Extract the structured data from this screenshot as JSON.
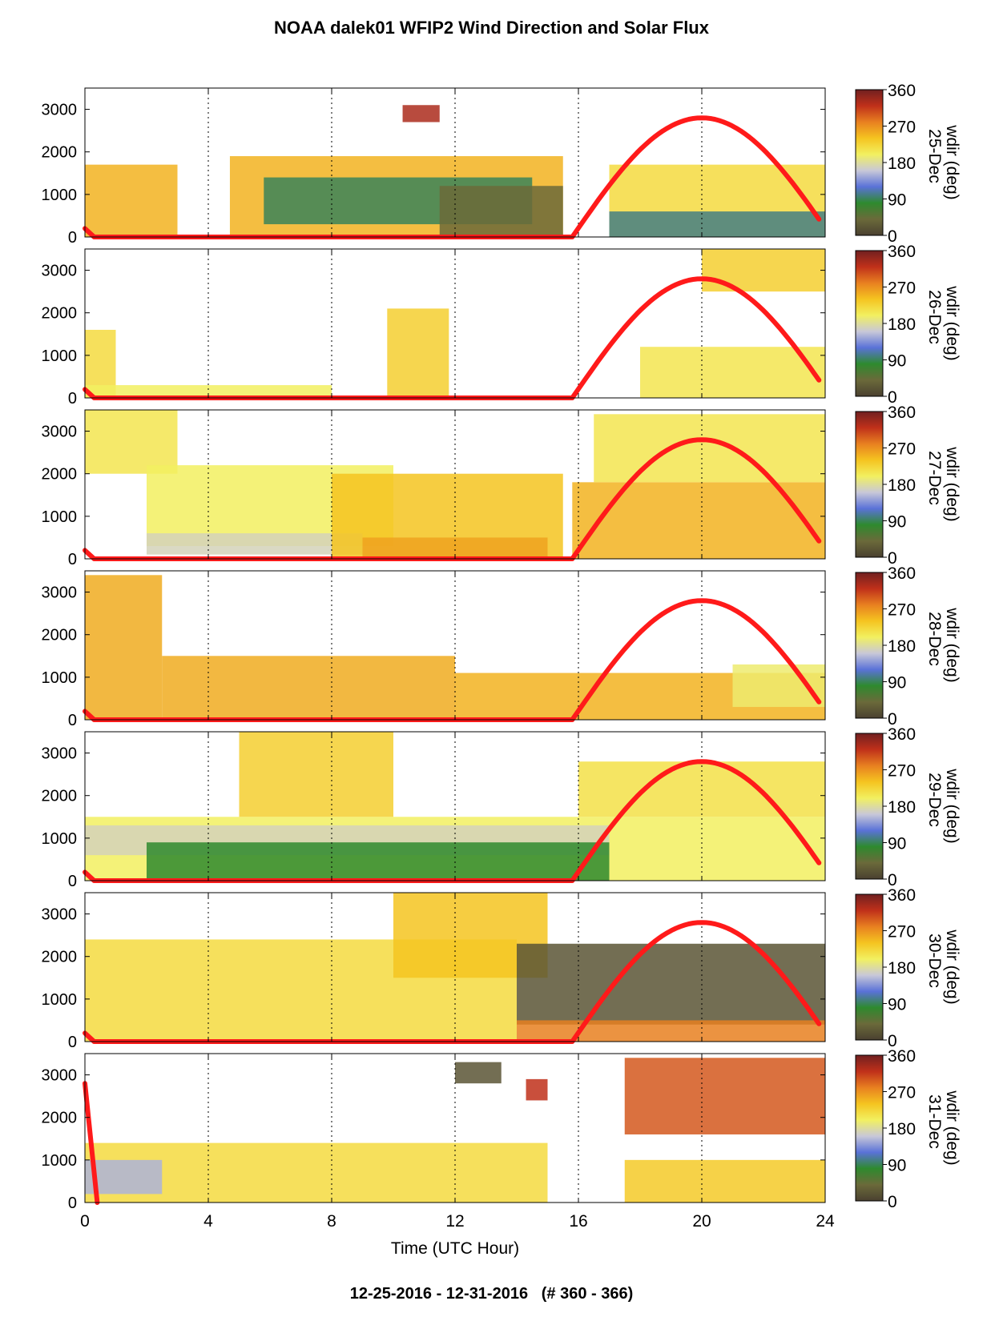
{
  "title": "NOAA dalek01 WFIP2 Wind Direction and Solar Flux",
  "footer": "12-25-2016 - 12-31-2016   (# 360 - 366)",
  "chart_data": {
    "type": "heatmap",
    "xlabel": "Time (UTC Hour)",
    "xlim": [
      0,
      24
    ],
    "xticks": [
      0,
      4,
      8,
      12,
      16,
      20,
      24
    ],
    "ylim": [
      0,
      3500
    ],
    "yticks": [
      0,
      1000,
      2000,
      3000
    ],
    "colorbar": {
      "label": "wdir (deg)",
      "ticks": [
        0,
        90,
        180,
        270,
        360
      ],
      "range": [
        0,
        360
      ],
      "colors": [
        "#4a4030",
        "#6b6a3a",
        "#2e8a2e",
        "#5a72d8",
        "#c8c8d8",
        "#f2f060",
        "#f5c420",
        "#e88020",
        "#c0301a",
        "#702020"
      ]
    },
    "solar_flux_color": "#ff1a1a",
    "panels": [
      {
        "day": "25-Dec",
        "solar_peak_hour": 20.0,
        "solar_start_hour": 15.8,
        "regions": [
          {
            "x": [
              0.0,
              3.0
            ],
            "y": [
              0,
              1700
            ],
            "dir": 250
          },
          {
            "x": [
              4.7,
              15.5
            ],
            "y": [
              0,
              1900
            ],
            "dir": 250
          },
          {
            "x": [
              5.8,
              14.5
            ],
            "y": [
              300,
              1400
            ],
            "dir": 90
          },
          {
            "x": [
              11.5,
              15.5
            ],
            "y": [
              0,
              1200
            ],
            "dir": 40
          },
          {
            "x": [
              17.0,
              24.0
            ],
            "y": [
              0,
              1700
            ],
            "dir": 220
          },
          {
            "x": [
              17.0,
              24.0
            ],
            "y": [
              0,
              600
            ],
            "dir": 100
          },
          {
            "x": [
              10.3,
              11.5
            ],
            "y": [
              2700,
              3100
            ],
            "dir": 330
          }
        ]
      },
      {
        "day": "26-Dec",
        "solar_peak_hour": 20.0,
        "solar_start_hour": 15.8,
        "regions": [
          {
            "x": [
              0.0,
              1.0
            ],
            "y": [
              0,
              1600
            ],
            "dir": 220
          },
          {
            "x": [
              0.0,
              8.0
            ],
            "y": [
              0,
              300
            ],
            "dir": 200
          },
          {
            "x": [
              9.8,
              11.8
            ],
            "y": [
              0,
              2100
            ],
            "dir": 230
          },
          {
            "x": [
              20.0,
              24.0
            ],
            "y": [
              2500,
              3500
            ],
            "dir": 230
          },
          {
            "x": [
              18.0,
              24.0
            ],
            "y": [
              0,
              1200
            ],
            "dir": 210
          }
        ]
      },
      {
        "day": "27-Dec",
        "solar_peak_hour": 20.0,
        "solar_start_hour": 15.8,
        "regions": [
          {
            "x": [
              0.0,
              3.0
            ],
            "y": [
              2000,
              3500
            ],
            "dir": 210
          },
          {
            "x": [
              2.0,
              10.0
            ],
            "y": [
              300,
              2200
            ],
            "dir": 200
          },
          {
            "x": [
              2.0,
              9.0
            ],
            "y": [
              100,
              600
            ],
            "dir": 170
          },
          {
            "x": [
              8.0,
              15.5
            ],
            "y": [
              0,
              2000
            ],
            "dir": 240
          },
          {
            "x": [
              9.0,
              15.0
            ],
            "y": [
              0,
              500
            ],
            "dir": 260
          },
          {
            "x": [
              15.8,
              24.0
            ],
            "y": [
              0,
              1800
            ],
            "dir": 250
          },
          {
            "x": [
              16.5,
              24.0
            ],
            "y": [
              1800,
              3400
            ],
            "dir": 210
          }
        ]
      },
      {
        "day": "28-Dec",
        "solar_peak_hour": 20.0,
        "solar_start_hour": 15.8,
        "regions": [
          {
            "x": [
              0.0,
              2.5
            ],
            "y": [
              0,
              3400
            ],
            "dir": 255
          },
          {
            "x": [
              2.5,
              12.0
            ],
            "y": [
              0,
              1500
            ],
            "dir": 255
          },
          {
            "x": [
              12.0,
              24.0
            ],
            "y": [
              0,
              1100
            ],
            "dir": 250
          },
          {
            "x": [
              21.0,
              24.0
            ],
            "y": [
              300,
              1300
            ],
            "dir": 195
          }
        ]
      },
      {
        "day": "29-Dec",
        "solar_peak_hour": 20.0,
        "solar_start_hour": 15.8,
        "regions": [
          {
            "x": [
              0.0,
              24.0
            ],
            "y": [
              0,
              1500
            ],
            "dir": 200
          },
          {
            "x": [
              5.0,
              10.0
            ],
            "y": [
              1500,
              3500
            ],
            "dir": 230
          },
          {
            "x": [
              0.0,
              17.0
            ],
            "y": [
              600,
              1300
            ],
            "dir": 170
          },
          {
            "x": [
              2.0,
              17.0
            ],
            "y": [
              0,
              900
            ],
            "dir": 80
          },
          {
            "x": [
              16.0,
              24.0
            ],
            "y": [
              1500,
              2800
            ],
            "dir": 215
          }
        ]
      },
      {
        "day": "30-Dec",
        "solar_peak_hour": 20.0,
        "solar_start_hour": 15.8,
        "regions": [
          {
            "x": [
              0.0,
              14.0
            ],
            "y": [
              0,
              2400
            ],
            "dir": 220
          },
          {
            "x": [
              10.0,
              15.0
            ],
            "y": [
              1500,
              3500
            ],
            "dir": 240
          },
          {
            "x": [
              14.0,
              24.0
            ],
            "y": [
              400,
              2300
            ],
            "dir": 20
          },
          {
            "x": [
              14.0,
              24.0
            ],
            "y": [
              0,
              500
            ],
            "dir": 280
          }
        ]
      },
      {
        "day": "31-Dec",
        "solar_peak_hour": 0.0,
        "solar_start_hour": 0.0,
        "solar_end_hour": 0.4,
        "regions": [
          {
            "x": [
              0.0,
              15.0
            ],
            "y": [
              0,
              1400
            ],
            "dir": 220
          },
          {
            "x": [
              0.0,
              2.5
            ],
            "y": [
              200,
              1000
            ],
            "dir": 150
          },
          {
            "x": [
              17.5,
              24.0
            ],
            "y": [
              0,
              1000
            ],
            "dir": 235
          },
          {
            "x": [
              17.5,
              24.0
            ],
            "y": [
              1600,
              3400
            ],
            "dir": 300
          },
          {
            "x": [
              12.0,
              13.5
            ],
            "y": [
              2800,
              3300
            ],
            "dir": 20
          },
          {
            "x": [
              14.3,
              15.0
            ],
            "y": [
              2400,
              2900
            ],
            "dir": 320
          }
        ]
      }
    ]
  }
}
